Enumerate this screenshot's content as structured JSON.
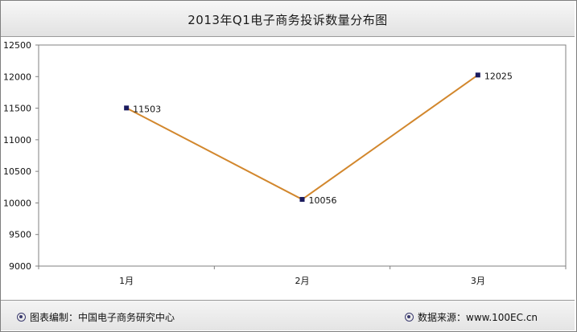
{
  "title": "2013年Q1电子商务投诉数量分布图",
  "chart_data": {
    "type": "line",
    "categories": [
      "1月",
      "2月",
      "3月"
    ],
    "series": [
      {
        "values": [
          11503,
          10056,
          12025
        ],
        "color": "#d2872d"
      }
    ],
    "ylim": [
      9000,
      12500
    ],
    "yticks": [
      9000,
      9500,
      10000,
      10500,
      11000,
      11500,
      12000,
      12500
    ],
    "grid": false,
    "marker_color": "#1a1a5e",
    "data_labels": true
  },
  "footer": {
    "left_label": "图表编制：中国电子商务研究中心",
    "right_label": "数据来源：www.100EC.cn"
  }
}
